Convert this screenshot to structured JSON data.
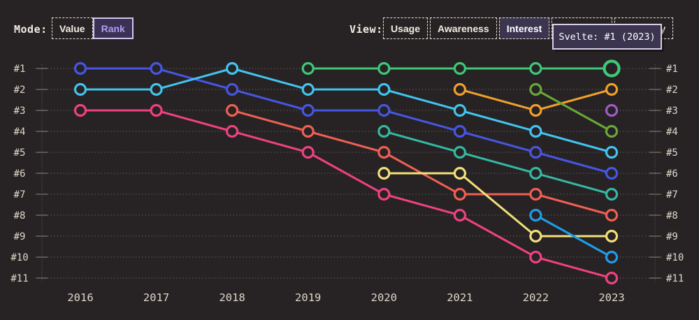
{
  "toolbar": {
    "mode": {
      "label": "Mode:",
      "options": [
        {
          "label": "Value",
          "selected": false
        },
        {
          "label": "Rank",
          "selected": true
        }
      ]
    },
    "view": {
      "label": "View:",
      "options": [
        {
          "label": "Usage",
          "selected": false
        },
        {
          "label": "Awareness",
          "selected": false
        },
        {
          "label": "Interest",
          "selected": true
        },
        {
          "label": "Retention",
          "selected": false
        },
        {
          "label": "Positivity",
          "selected": false
        }
      ]
    }
  },
  "tooltip": {
    "text": "Svelte: #1 (2023)"
  },
  "colors": {
    "background": "#272324",
    "gridline": "#56504a",
    "axis": "#6b655e",
    "tick": "#8d867d",
    "label": "#ddd7ca"
  },
  "chart_data": {
    "type": "line",
    "subtype": "bump-rank-chart",
    "x": [
      2016,
      2017,
      2018,
      2019,
      2020,
      2021,
      2022,
      2023
    ],
    "y_axis": {
      "labels": [
        "#1",
        "#2",
        "#3",
        "#4",
        "#5",
        "#6",
        "#7",
        "#8",
        "#9",
        "#10",
        "#11"
      ],
      "min": 1,
      "max": 11,
      "inverted": true,
      "mirrored_right": true
    },
    "grid": "dotted-horizontal",
    "legend": "none",
    "series": [
      {
        "name": "blue",
        "color": "#4656e2",
        "ranks": [
          1,
          1,
          2,
          3,
          3,
          4,
          5,
          6
        ]
      },
      {
        "name": "cyan",
        "color": "#41c4ef",
        "ranks": [
          2,
          2,
          1,
          2,
          2,
          3,
          4,
          5
        ]
      },
      {
        "name": "rose",
        "color": "#ee4181",
        "ranks": [
          3,
          3,
          4,
          5,
          7,
          8,
          10,
          11
        ]
      },
      {
        "name": "salmon",
        "color": "#ef5f54",
        "ranks": [
          null,
          null,
          3,
          4,
          5,
          7,
          7,
          8
        ]
      },
      {
        "name": "emerald",
        "color": "#3fc878",
        "ranks": [
          null,
          null,
          null,
          1,
          1,
          1,
          1,
          1
        ]
      },
      {
        "name": "teal",
        "color": "#34b8a2",
        "ranks": [
          null,
          null,
          null,
          null,
          4,
          5,
          6,
          7
        ]
      },
      {
        "name": "yellow",
        "color": "#f2df7a",
        "ranks": [
          null,
          null,
          null,
          null,
          6,
          6,
          9,
          9
        ]
      },
      {
        "name": "orange",
        "color": "#f0a02c",
        "ranks": [
          null,
          null,
          null,
          null,
          null,
          2,
          3,
          2
        ]
      },
      {
        "name": "lime",
        "color": "#69a838",
        "ranks": [
          null,
          null,
          null,
          null,
          null,
          null,
          2,
          4
        ]
      },
      {
        "name": "sky",
        "color": "#1f9ceb",
        "ranks": [
          null,
          null,
          null,
          null,
          null,
          null,
          8,
          10
        ]
      },
      {
        "name": "purple",
        "color": "#9f5bc8",
        "ranks": [
          null,
          null,
          null,
          null,
          null,
          null,
          null,
          3
        ]
      }
    ],
    "highlight": {
      "series": "emerald",
      "x": 2023,
      "rank": 1,
      "tooltip": "Svelte: #1 (2023)"
    }
  }
}
